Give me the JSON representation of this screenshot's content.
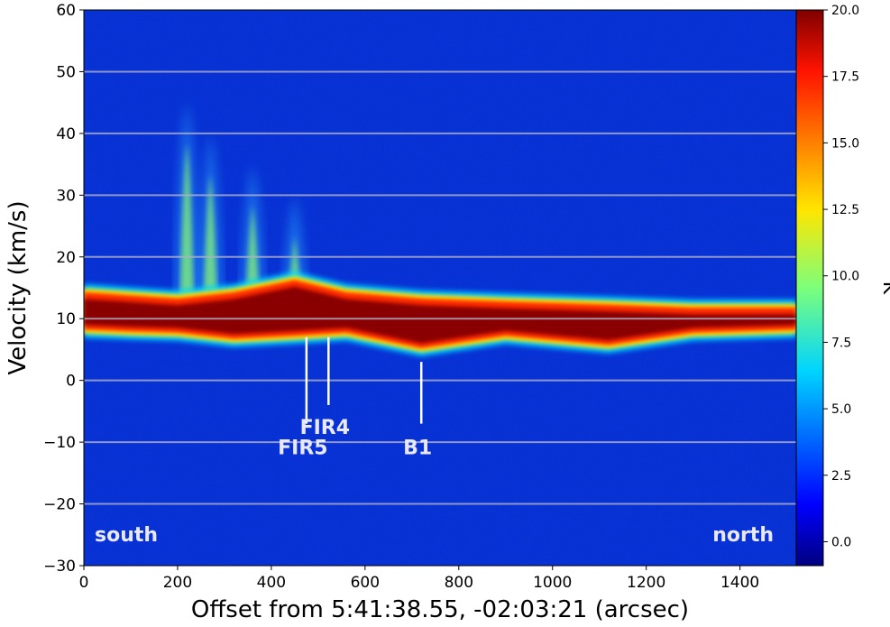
{
  "chart_data": {
    "type": "heatmap",
    "title": "",
    "xlabel": "Offset from 5:41:38.55, -02:03:21 (arcsec)",
    "ylabel": "Velocity (km/s)",
    "xlim": [
      0,
      1520
    ],
    "ylim": [
      -30,
      60
    ],
    "x_ticks": [
      0,
      200,
      400,
      600,
      800,
      1000,
      1200,
      1400
    ],
    "y_ticks": [
      -30,
      -20,
      -10,
      0,
      10,
      20,
      30,
      40,
      50,
      60
    ],
    "y_gridlines": [
      -20,
      -10,
      0,
      10,
      20,
      30,
      40,
      50
    ],
    "grid": "horizontal",
    "colorbar": {
      "label": "K",
      "colormap": "jet",
      "min": -0.9,
      "max": 20.0,
      "ticks": [
        "0.0",
        "2.5",
        "5.0",
        "7.5",
        "10.0",
        "12.5",
        "15.0",
        "17.5",
        "20.0"
      ]
    },
    "annotations": [
      {
        "text": "FIR5",
        "x": 475,
        "line_from_v": 7,
        "line_to_v": -7,
        "label_v": -10.8
      },
      {
        "text": "FIR4",
        "x": 522,
        "line_from_v": 7,
        "line_to_v": -4,
        "label_v": -7.5
      },
      {
        "text": "B1",
        "x": 720,
        "line_from_v": 3,
        "line_to_v": -7,
        "label_v": -10.8
      }
    ],
    "corner_labels": {
      "left": "south",
      "right": "north"
    },
    "emission_ridge": [
      {
        "x": 0,
        "v_low": 8.5,
        "v_high": 14
      },
      {
        "x": 100,
        "v_low": 8.2,
        "v_high": 13.5
      },
      {
        "x": 200,
        "v_low": 8.0,
        "v_high": 13
      },
      {
        "x": 320,
        "v_low": 7.0,
        "v_high": 14
      },
      {
        "x": 450,
        "v_low": 7.5,
        "v_high": 16
      },
      {
        "x": 560,
        "v_low": 8.0,
        "v_high": 14
      },
      {
        "x": 720,
        "v_low": 5.5,
        "v_high": 13
      },
      {
        "x": 900,
        "v_low": 7.5,
        "v_high": 12.5
      },
      {
        "x": 1120,
        "v_low": 6.0,
        "v_high": 12
      },
      {
        "x": 1300,
        "v_low": 8.0,
        "v_high": 11.5
      },
      {
        "x": 1520,
        "v_low": 8.5,
        "v_high": 11.5
      }
    ],
    "outflow_plumes": [
      {
        "x": 220,
        "v_max": 45
      },
      {
        "x": 270,
        "v_max": 40
      },
      {
        "x": 360,
        "v_max": 35
      },
      {
        "x": 450,
        "v_max": 30
      }
    ]
  }
}
